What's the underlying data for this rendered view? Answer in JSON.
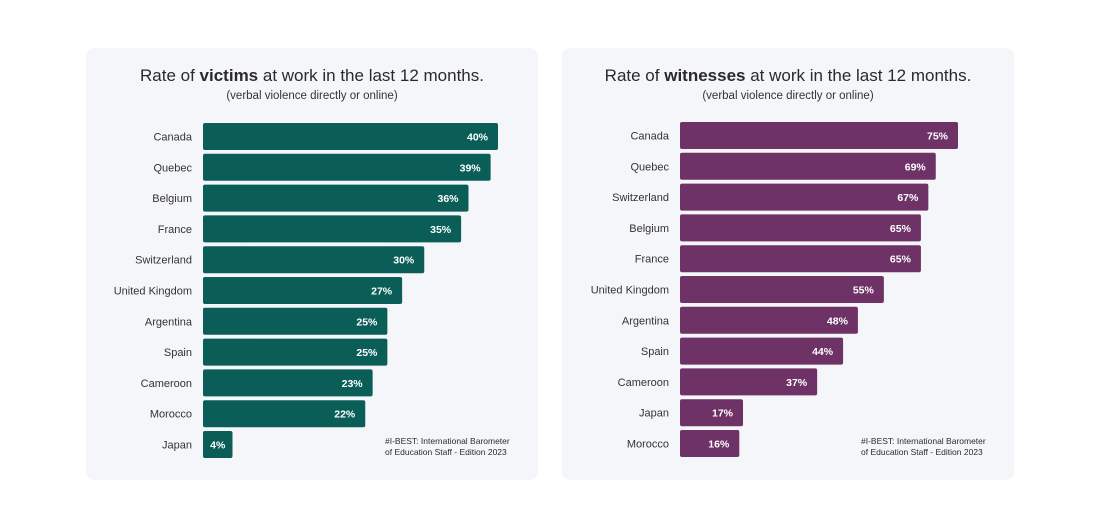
{
  "charts": [
    {
      "title_pre": "Rate of ",
      "title_bold": "victims",
      "title_post": " at work in the last 12 months.",
      "subtitle": "(verbal violence directly or online)",
      "source_line1": "#I-BEST: International Barometer",
      "source_line2": "of Education Staff - Edition 2023"
    },
    {
      "title_pre": "Rate of ",
      "title_bold": "witnesses",
      "title_post": " at work in the last 12 months.",
      "subtitle": "(verbal violence directly or online)",
      "source_line1": "#I-BEST: International Barometer",
      "source_line2": "of Education Staff - Edition 2023"
    }
  ],
  "chart_data": [
    {
      "type": "bar",
      "orientation": "horizontal",
      "title": "Rate of victims at work in the last 12 months.",
      "subtitle": "(verbal violence directly or online)",
      "color": "#0b5e58",
      "xlim": [
        0,
        40
      ],
      "grid": false,
      "categories": [
        "Canada",
        "Quebec",
        "Belgium",
        "France",
        "Switzerland",
        "United Kingdom",
        "Argentina",
        "Spain",
        "Cameroon",
        "Morocco",
        "Japan"
      ],
      "values": [
        40,
        39,
        36,
        35,
        30,
        27,
        25,
        25,
        23,
        22,
        4
      ],
      "labels": [
        "40%",
        "39%",
        "36%",
        "35%",
        "30%",
        "27%",
        "25%",
        "25%",
        "23%",
        "22%",
        "4%"
      ]
    },
    {
      "type": "bar",
      "orientation": "horizontal",
      "title": "Rate of witnesses at work in the last 12 months.",
      "subtitle": "(verbal violence directly or online)",
      "color": "#6e3266",
      "xlim": [
        0,
        75
      ],
      "grid": false,
      "categories": [
        "Canada",
        "Quebec",
        "Switzerland",
        "Belgium",
        "France",
        "United Kingdom",
        "Argentina",
        "Spain",
        "Cameroon",
        "Japan",
        "Morocco"
      ],
      "values": [
        75,
        69,
        67,
        65,
        65,
        55,
        48,
        44,
        37,
        17,
        16
      ],
      "labels": [
        "75%",
        "69%",
        "67%",
        "65%",
        "65%",
        "55%",
        "48%",
        "44%",
        "37%",
        "17%",
        "16%"
      ]
    }
  ]
}
